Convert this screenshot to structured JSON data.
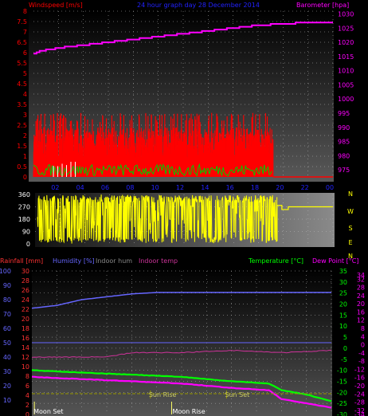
{
  "header": {
    "title": "24 hour graph day  28 December 2014",
    "left_label": "Windspeed [m/s]",
    "right_label": "Barometer [hpa]",
    "row3_labels": [
      "Rainfall [mm]",
      "Humidity [%]",
      "Indoor hum",
      "Indoor temp"
    ],
    "row3_right_labels": [
      "Temperature [°C]",
      "Dew Point [°C]"
    ],
    "sun_rise": "Sun Rise",
    "sun_set": "Sun Set",
    "moon_set": "Moon Set",
    "moon_rise": "Moon Rise"
  },
  "colors": {
    "wind": "#ff0000",
    "gust": "#ff0000",
    "wind_avg": "#00cc00",
    "barometer": "#ff00ff",
    "direction": "#ffff00",
    "rain": "#ff3333",
    "humidity": "#6666ff",
    "indoor_hum": "#888888",
    "indoor_temp": "#cc3399",
    "temperature": "#00ff00",
    "dewpoint": "#ff00ff",
    "title": "#2222ff",
    "sun": "#999900"
  },
  "chart_data": [
    {
      "type": "area",
      "name": "wind-barometer",
      "x_ticks": [
        "02",
        "04",
        "06",
        "08",
        "10",
        "12",
        "14",
        "16",
        "18",
        "20",
        "22",
        "00"
      ],
      "left_axis": {
        "label": "Windspeed [m/s]",
        "ylim": [
          0,
          8
        ],
        "ticks": [
          "0",
          "0.5",
          "1",
          "1.5",
          "2",
          "2.5",
          "3",
          "3.5",
          "4",
          "4.5",
          "5",
          "5.5",
          "6",
          "6.5",
          "7",
          "7.5",
          "8"
        ]
      },
      "right_axis": {
        "label": "Barometer [hpa]",
        "ylim": [
          972.5,
          1031
        ],
        "ticks": [
          "975",
          "980",
          "985",
          "990",
          "995",
          "1000",
          "1005",
          "1010",
          "1015",
          "1020",
          "1025",
          "1030"
        ]
      },
      "wind_gust_max": 3.1,
      "wind_gust_typical": 2.4,
      "wind_end_hour": 19.2,
      "barometer": [
        {
          "h": 0,
          "v": 1016
        },
        {
          "h": 0.5,
          "v": 1017
        },
        {
          "h": 2,
          "v": 1018
        },
        {
          "h": 4,
          "v": 1019
        },
        {
          "h": 6,
          "v": 1020
        },
        {
          "h": 8,
          "v": 1021
        },
        {
          "h": 10,
          "v": 1022
        },
        {
          "h": 12,
          "v": 1023
        },
        {
          "h": 14,
          "v": 1024
        },
        {
          "h": 16,
          "v": 1025
        },
        {
          "h": 18,
          "v": 1026
        },
        {
          "h": 20,
          "v": 1026.5
        },
        {
          "h": 22,
          "v": 1027
        },
        {
          "h": 24,
          "v": 1027
        }
      ]
    },
    {
      "type": "scatter",
      "name": "wind-direction",
      "left_axis": {
        "ylim": [
          0,
          360
        ],
        "ticks": [
          "0",
          "90",
          "180",
          "270",
          "360"
        ]
      },
      "right_ticks": [
        "N",
        "W",
        "S",
        "E",
        "N"
      ],
      "direction_end_hour": 19.5,
      "final_direction": 270
    },
    {
      "type": "line",
      "name": "humidity-temperature",
      "axes": {
        "humidity": {
          "ylim": [
            0,
            100
          ],
          "ticks": [
            "10",
            "20",
            "30",
            "40",
            "50",
            "60",
            "70",
            "80",
            "90",
            "100"
          ]
        },
        "rainfall": {
          "ylim": [
            0,
            30
          ],
          "ticks": [
            "0",
            "2",
            "4",
            "6",
            "8",
            "10",
            "12",
            "14",
            "16",
            "18",
            "20",
            "22",
            "24",
            "26",
            "28",
            "30"
          ]
        },
        "temperature": {
          "ylim": [
            -30,
            35
          ],
          "ticks": [
            "-30",
            "-25",
            "-20",
            "-15",
            "-10",
            "-5",
            "0",
            "5",
            "10",
            "15",
            "20",
            "25",
            "30",
            "35"
          ]
        },
        "dewpoint": {
          "ylim": [
            -34,
            36
          ],
          "ticks": [
            "-34",
            "-32",
            "-28",
            "-24",
            "-20",
            "-16",
            "-12",
            "-8",
            "-4",
            "0",
            "4",
            "8",
            "12",
            "16",
            "20",
            "24",
            "28",
            "32",
            "34"
          ]
        }
      },
      "humidity": [
        {
          "h": 0,
          "v": 74
        },
        {
          "h": 2,
          "v": 76
        },
        {
          "h": 4,
          "v": 80
        },
        {
          "h": 6,
          "v": 82
        },
        {
          "h": 8,
          "v": 84
        },
        {
          "h": 10,
          "v": 85
        },
        {
          "h": 24,
          "v": 85
        }
      ],
      "indoor_temp": [
        {
          "h": 0,
          "v": -4
        },
        {
          "h": 6,
          "v": -4
        },
        {
          "h": 8,
          "v": -2
        },
        {
          "h": 12,
          "v": -2
        },
        {
          "h": 16,
          "v": -1
        },
        {
          "h": 20,
          "v": -2
        },
        {
          "h": 24,
          "v": -1
        }
      ],
      "temperature": [
        {
          "h": 0,
          "v": -10
        },
        {
          "h": 4,
          "v": -11
        },
        {
          "h": 8,
          "v": -12
        },
        {
          "h": 12,
          "v": -13
        },
        {
          "h": 16,
          "v": -15
        },
        {
          "h": 19,
          "v": -16
        },
        {
          "h": 20,
          "v": -19
        },
        {
          "h": 22,
          "v": -21
        },
        {
          "h": 24,
          "v": -24
        }
      ],
      "dewpoint": [
        {
          "h": 0,
          "v": -13
        },
        {
          "h": 4,
          "v": -14
        },
        {
          "h": 8,
          "v": -15
        },
        {
          "h": 12,
          "v": -16
        },
        {
          "h": 16,
          "v": -18
        },
        {
          "h": 19,
          "v": -19
        },
        {
          "h": 20,
          "v": -23
        },
        {
          "h": 22,
          "v": -25
        },
        {
          "h": 24,
          "v": -27
        }
      ],
      "sun_rise_hour": 9.5,
      "sun_set_hour": 15.6,
      "moon_set_hour": 0.2,
      "moon_rise_hour": 11.2
    }
  ]
}
